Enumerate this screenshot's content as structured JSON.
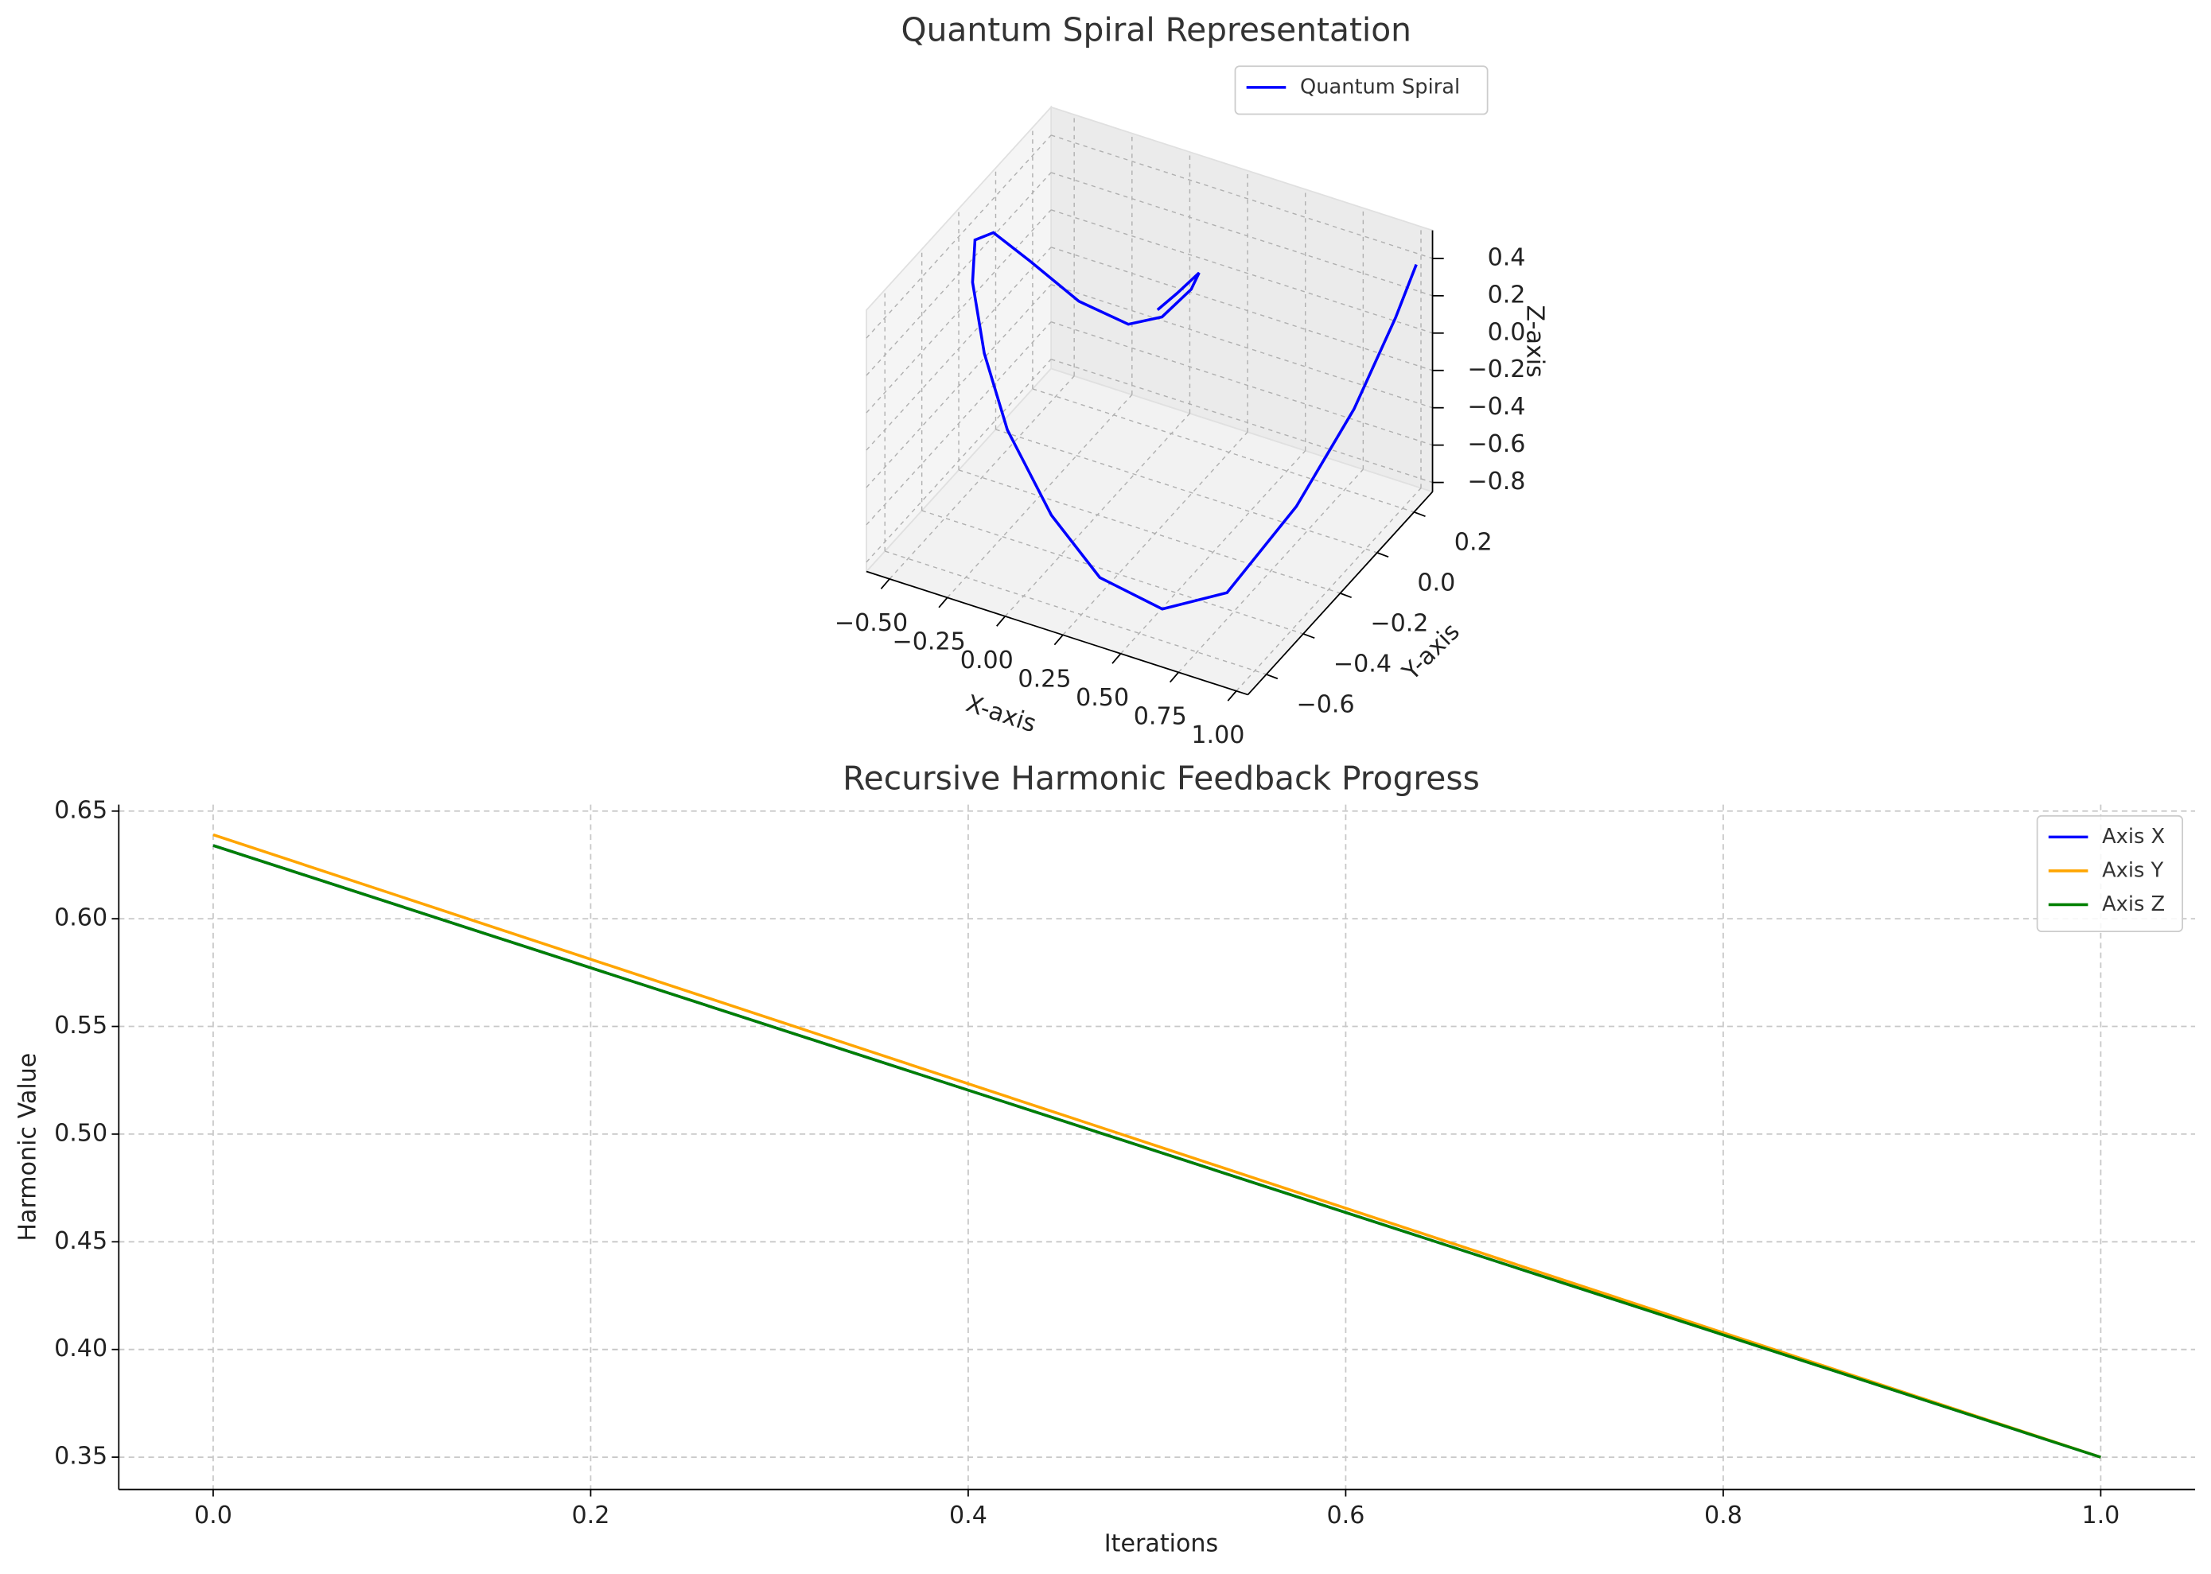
{
  "chart_data": [
    {
      "type": "line3d",
      "title": "Quantum Spiral Representation",
      "xlabel": "X-axis",
      "ylabel": "Y-axis",
      "zlabel": "Z-axis",
      "series": [
        {
          "name": "Quantum Spiral",
          "color": "#0000ff",
          "x": [
            0.06,
            0.12,
            0.2,
            0.15,
            0.0,
            -0.17,
            -0.32,
            -0.45,
            -0.57,
            -0.57,
            -0.54,
            -0.41,
            -0.23,
            0.04,
            0.29,
            0.6,
            0.88,
            1.02,
            1.03,
            1.05,
            1.06
          ],
          "y": [
            0.05,
            0.08,
            0.1,
            0.12,
            0.15,
            0.18,
            0.1,
            0.0,
            -0.05,
            -0.15,
            -0.2,
            -0.3,
            -0.4,
            -0.5,
            -0.55,
            -0.6,
            -0.6,
            -0.4,
            -0.1,
            0.1,
            0.2
          ],
          "z": [
            0.0,
            0.08,
            0.2,
            0.07,
            -0.17,
            -0.31,
            -0.16,
            0.11,
            0.27,
            0.34,
            0.18,
            -0.04,
            -0.27,
            -0.51,
            -0.69,
            -0.68,
            -0.48,
            -0.18,
            0.02,
            0.3,
            0.48
          ]
        }
      ],
      "xlim": [
        -0.6,
        1.05
      ],
      "ylim": [
        -0.7,
        0.3
      ],
      "zlim": [
        -0.85,
        0.55
      ],
      "xticks": [
        {
          "value": -0.5,
          "label": "−0.50"
        },
        {
          "value": -0.25,
          "label": "−0.25"
        },
        {
          "value": 0,
          "label": "0.00"
        },
        0.25,
        {
          "value": 0.5,
          "label": "0.50"
        },
        0.75,
        {
          "value": 1,
          "label": "1.00"
        }
      ],
      "yticks": [
        {
          "value": -0.6,
          "label": "−0.6"
        },
        {
          "value": -0.4,
          "label": "−0.4"
        },
        {
          "value": -0.2,
          "label": "−0.2"
        },
        {
          "value": 0,
          "label": "0.0"
        },
        0.2
      ],
      "zticks": [
        {
          "value": -0.8,
          "label": "−0.8"
        },
        {
          "value": -0.6,
          "label": "−0.6"
        },
        {
          "value": -0.4,
          "label": "−0.4"
        },
        {
          "value": -0.2,
          "label": "−0.2"
        },
        {
          "value": 0,
          "label": "0.0"
        },
        0.2,
        0.4
      ],
      "grid": true,
      "legend": "upper right"
    },
    {
      "type": "line",
      "title": "Recursive Harmonic Feedback Progress",
      "xlabel": "Iterations",
      "ylabel": "Harmonic Value",
      "x": [
        0,
        1
      ],
      "series": [
        {
          "name": "Axis X",
          "color": "#0000ff",
          "values": [
            0.634,
            0.35
          ]
        },
        {
          "name": "Axis Y",
          "color": "#ffa500",
          "values": [
            0.639,
            0.35
          ]
        },
        {
          "name": "Axis Z",
          "color": "#008000",
          "values": [
            0.634,
            0.35
          ]
        }
      ],
      "xlim": [
        -0.05,
        1.05
      ],
      "ylim": [
        0.335,
        0.653
      ],
      "xticks": [
        {
          "value": 0,
          "label": "0.0"
        },
        0.2,
        0.4,
        0.6,
        0.8,
        {
          "value": 1,
          "label": "1.0"
        }
      ],
      "yticks": [
        0.35,
        {
          "value": 0.4,
          "label": "0.40"
        },
        0.45,
        {
          "value": 0.5,
          "label": "0.50"
        },
        0.55,
        {
          "value": 0.6,
          "label": "0.60"
        },
        0.65
      ],
      "grid": true,
      "legend": "upper right"
    }
  ]
}
